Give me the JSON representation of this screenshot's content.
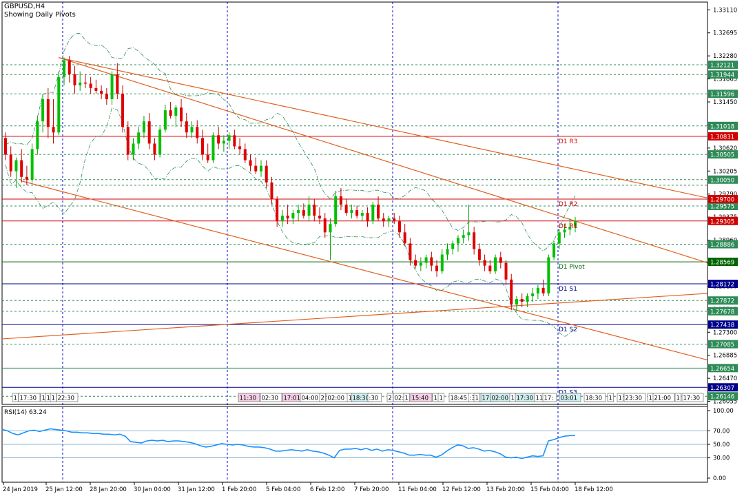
{
  "header": {
    "symbol_line": "GBPUSD,H4",
    "subtitle": "Showing Daily Pivots"
  },
  "chart_data": {
    "type": "candlestick",
    "symbol": "GBPUSD",
    "timeframe": "H4",
    "price_range": [
      1.26,
      1.3325
    ],
    "price_ticks": [
      "1.33110",
      "1.32695",
      "1.32280",
      "1.31865",
      "1.31450",
      "1.31035",
      "1.30620",
      "1.30205",
      "1.29790",
      "1.29375",
      "1.28960",
      "1.28545",
      "1.28130",
      "1.27715",
      "1.27300",
      "1.26885",
      "1.26470",
      "1.26055"
    ],
    "time_labels": [
      "24 Jan 2019",
      "25 Jan 12:00",
      "28 Jan 20:00",
      "30 Jan 04:00",
      "31 Jan 12:00",
      "1 Feb 20:00",
      "5 Feb 04:00",
      "6 Feb 12:00",
      "7 Feb 20:00",
      "11 Feb 04:00",
      "12 Feb 12:00",
      "13 Feb 20:00",
      "15 Feb 04:00",
      "18 Feb 12:00"
    ],
    "colors": {
      "bull": "#00c000",
      "bear": "#e00000",
      "wick_bull": "#00a000",
      "wick_bear": "#c00000",
      "trend": "#e06020",
      "pivot_red": "#d00000",
      "pivot_green": "#006400",
      "pivot_blue": "#00008b",
      "rsi": "#1e90ff",
      "grid": "#2e8b57",
      "vline": "#0000cd"
    },
    "pivots": [
      {
        "label": "D1 R3",
        "price": 1.30831,
        "color": "red"
      },
      {
        "label": "D1 R2",
        "price": 1.297,
        "color": "red"
      },
      {
        "label": "D1 R1",
        "price": 1.29305,
        "color": "red"
      },
      {
        "label": "D1 Pivot",
        "price": 1.28569,
        "color": "green"
      },
      {
        "label": "D1 S1",
        "price": 1.28172,
        "color": "blue"
      },
      {
        "label": "D1 S2",
        "price": 1.27438,
        "color": "blue"
      },
      {
        "label": "D1 S3",
        "price": 1.26307,
        "color": "blue"
      }
    ],
    "right_pivot_boxes": [
      {
        "price": 1.30831,
        "text": "1.30831",
        "bg": "#d00000"
      },
      {
        "price": 1.297,
        "text": "1.29700",
        "bg": "#d00000"
      },
      {
        "price": 1.29305,
        "text": "1.29305",
        "bg": "#d00000"
      },
      {
        "price": 1.28569,
        "text": "1.28569",
        "bg": "#006400"
      },
      {
        "price": 1.28172,
        "text": "1.28172",
        "bg": "#00008b"
      },
      {
        "price": 1.27438,
        "text": "1.27438",
        "bg": "#00008b"
      },
      {
        "price": 1.26307,
        "text": "1.26307",
        "bg": "#00008b"
      }
    ],
    "right_level_boxes": [
      {
        "price": 1.32121,
        "text": "1.32121"
      },
      {
        "price": 1.31944,
        "text": "1.31944"
      },
      {
        "price": 1.31596,
        "text": "1.31596"
      },
      {
        "price": 1.31018,
        "text": "1.31018"
      },
      {
        "price": 1.30505,
        "text": "1.30505"
      },
      {
        "price": 1.3005,
        "text": "1.30050"
      },
      {
        "price": 1.29575,
        "text": "1.29575"
      },
      {
        "price": 1.28886,
        "text": "1.28886"
      },
      {
        "price": 1.27872,
        "text": "1.27872"
      },
      {
        "price": 1.27678,
        "text": "1.27678"
      },
      {
        "price": 1.27085,
        "text": "1.27085"
      },
      {
        "price": 1.26654,
        "text": "1.26654"
      },
      {
        "price": 1.26146,
        "text": "1.26146"
      }
    ],
    "dashed_levels": [
      1.32121,
      1.31944,
      1.31596,
      1.31018,
      1.30505,
      1.3005,
      1.2995,
      1.29575,
      1.28886,
      1.27872,
      1.27678,
      1.27085,
      1.26146
    ],
    "solid_levels": [
      1.26654
    ],
    "candles": [
      {
        "o": 1.308,
        "h": 1.309,
        "l": 1.304,
        "c": 1.305
      },
      {
        "o": 1.305,
        "h": 1.3065,
        "l": 1.301,
        "c": 1.302
      },
      {
        "o": 1.302,
        "h": 1.3045,
        "l": 1.299,
        "c": 1.304
      },
      {
        "o": 1.304,
        "h": 1.306,
        "l": 1.3,
        "c": 1.301
      },
      {
        "o": 1.301,
        "h": 1.303,
        "l": 1.2995,
        "c": 1.3005
      },
      {
        "o": 1.3005,
        "h": 1.307,
        "l": 1.3,
        "c": 1.306
      },
      {
        "o": 1.306,
        "h": 1.312,
        "l": 1.305,
        "c": 1.311
      },
      {
        "o": 1.311,
        "h": 1.316,
        "l": 1.309,
        "c": 1.315
      },
      {
        "o": 1.315,
        "h": 1.317,
        "l": 1.308,
        "c": 1.31
      },
      {
        "o": 1.31,
        "h": 1.315,
        "l": 1.307,
        "c": 1.309
      },
      {
        "o": 1.309,
        "h": 1.32,
        "l": 1.3085,
        "c": 1.319
      },
      {
        "o": 1.319,
        "h": 1.3225,
        "l": 1.3175,
        "c": 1.322
      },
      {
        "o": 1.322,
        "h": 1.3228,
        "l": 1.318,
        "c": 1.3195
      },
      {
        "o": 1.3195,
        "h": 1.321,
        "l": 1.316,
        "c": 1.3175
      },
      {
        "o": 1.3175,
        "h": 1.32,
        "l": 1.3165,
        "c": 1.318
      },
      {
        "o": 1.318,
        "h": 1.3195,
        "l": 1.317,
        "c": 1.3178
      },
      {
        "o": 1.3178,
        "h": 1.319,
        "l": 1.316,
        "c": 1.317
      },
      {
        "o": 1.317,
        "h": 1.3185,
        "l": 1.316,
        "c": 1.3165
      },
      {
        "o": 1.3165,
        "h": 1.3175,
        "l": 1.315,
        "c": 1.316
      },
      {
        "o": 1.316,
        "h": 1.317,
        "l": 1.314,
        "c": 1.315
      },
      {
        "o": 1.315,
        "h": 1.32,
        "l": 1.314,
        "c": 1.3195
      },
      {
        "o": 1.3195,
        "h": 1.3215,
        "l": 1.315,
        "c": 1.316
      },
      {
        "o": 1.316,
        "h": 1.3175,
        "l": 1.309,
        "c": 1.31
      },
      {
        "o": 1.31,
        "h": 1.311,
        "l": 1.304,
        "c": 1.305
      },
      {
        "o": 1.305,
        "h": 1.308,
        "l": 1.304,
        "c": 1.307
      },
      {
        "o": 1.307,
        "h": 1.31,
        "l": 1.306,
        "c": 1.309
      },
      {
        "o": 1.309,
        "h": 1.312,
        "l": 1.308,
        "c": 1.311
      },
      {
        "o": 1.311,
        "h": 1.3125,
        "l": 1.306,
        "c": 1.307
      },
      {
        "o": 1.307,
        "h": 1.308,
        "l": 1.304,
        "c": 1.305
      },
      {
        "o": 1.305,
        "h": 1.31,
        "l": 1.3045,
        "c": 1.3095
      },
      {
        "o": 1.3095,
        "h": 1.314,
        "l": 1.309,
        "c": 1.313
      },
      {
        "o": 1.313,
        "h": 1.3145,
        "l": 1.3115,
        "c": 1.312
      },
      {
        "o": 1.312,
        "h": 1.314,
        "l": 1.31,
        "c": 1.3135
      },
      {
        "o": 1.3135,
        "h": 1.315,
        "l": 1.31,
        "c": 1.311
      },
      {
        "o": 1.311,
        "h": 1.3125,
        "l": 1.308,
        "c": 1.309
      },
      {
        "o": 1.309,
        "h": 1.311,
        "l": 1.308,
        "c": 1.31
      },
      {
        "o": 1.31,
        "h": 1.3112,
        "l": 1.307,
        "c": 1.308
      },
      {
        "o": 1.308,
        "h": 1.3095,
        "l": 1.304,
        "c": 1.305
      },
      {
        "o": 1.305,
        "h": 1.307,
        "l": 1.3035,
        "c": 1.304
      },
      {
        "o": 1.304,
        "h": 1.309,
        "l": 1.3035,
        "c": 1.3085
      },
      {
        "o": 1.3085,
        "h": 1.31,
        "l": 1.306,
        "c": 1.307
      },
      {
        "o": 1.307,
        "h": 1.3085,
        "l": 1.3055,
        "c": 1.3075
      },
      {
        "o": 1.3075,
        "h": 1.309,
        "l": 1.306,
        "c": 1.3085
      },
      {
        "o": 1.3085,
        "h": 1.3095,
        "l": 1.306,
        "c": 1.3065
      },
      {
        "o": 1.3065,
        "h": 1.308,
        "l": 1.305,
        "c": 1.306
      },
      {
        "o": 1.306,
        "h": 1.307,
        "l": 1.3035,
        "c": 1.304
      },
      {
        "o": 1.304,
        "h": 1.305,
        "l": 1.302,
        "c": 1.303
      },
      {
        "o": 1.303,
        "h": 1.3045,
        "l": 1.3015,
        "c": 1.302
      },
      {
        "o": 1.302,
        "h": 1.304,
        "l": 1.301,
        "c": 1.303
      },
      {
        "o": 1.303,
        "h": 1.304,
        "l": 1.299,
        "c": 1.3
      },
      {
        "o": 1.3,
        "h": 1.301,
        "l": 1.296,
        "c": 1.297
      },
      {
        "o": 1.297,
        "h": 1.2975,
        "l": 1.292,
        "c": 1.293
      },
      {
        "o": 1.293,
        "h": 1.295,
        "l": 1.292,
        "c": 1.294
      },
      {
        "o": 1.294,
        "h": 1.296,
        "l": 1.2925,
        "c": 1.2935
      },
      {
        "o": 1.2935,
        "h": 1.295,
        "l": 1.2925,
        "c": 1.2945
      },
      {
        "o": 1.2945,
        "h": 1.296,
        "l": 1.293,
        "c": 1.295
      },
      {
        "o": 1.295,
        "h": 1.2962,
        "l": 1.2935,
        "c": 1.294
      },
      {
        "o": 1.294,
        "h": 1.2975,
        "l": 1.293,
        "c": 1.296
      },
      {
        "o": 1.296,
        "h": 1.297,
        "l": 1.293,
        "c": 1.294
      },
      {
        "o": 1.294,
        "h": 1.2955,
        "l": 1.2925,
        "c": 1.2935
      },
      {
        "o": 1.2935,
        "h": 1.2945,
        "l": 1.29,
        "c": 1.291
      },
      {
        "o": 1.291,
        "h": 1.2935,
        "l": 1.286,
        "c": 1.2925
      },
      {
        "o": 1.2925,
        "h": 1.2985,
        "l": 1.292,
        "c": 1.2975
      },
      {
        "o": 1.2975,
        "h": 1.299,
        "l": 1.295,
        "c": 1.296
      },
      {
        "o": 1.296,
        "h": 1.297,
        "l": 1.294,
        "c": 1.2945
      },
      {
        "o": 1.2945,
        "h": 1.296,
        "l": 1.2935,
        "c": 1.295
      },
      {
        "o": 1.295,
        "h": 1.2958,
        "l": 1.2935,
        "c": 1.294
      },
      {
        "o": 1.294,
        "h": 1.295,
        "l": 1.293,
        "c": 1.2945
      },
      {
        "o": 1.2945,
        "h": 1.2955,
        "l": 1.292,
        "c": 1.293
      },
      {
        "o": 1.293,
        "h": 1.2965,
        "l": 1.2925,
        "c": 1.296
      },
      {
        "o": 1.296,
        "h": 1.2975,
        "l": 1.293,
        "c": 1.2935
      },
      {
        "o": 1.2935,
        "h": 1.2945,
        "l": 1.292,
        "c": 1.293
      },
      {
        "o": 1.293,
        "h": 1.294,
        "l": 1.292,
        "c": 1.2935
      },
      {
        "o": 1.2935,
        "h": 1.2945,
        "l": 1.2925,
        "c": 1.293
      },
      {
        "o": 1.293,
        "h": 1.294,
        "l": 1.29,
        "c": 1.291
      },
      {
        "o": 1.291,
        "h": 1.2925,
        "l": 1.2885,
        "c": 1.289
      },
      {
        "o": 1.289,
        "h": 1.29,
        "l": 1.285,
        "c": 1.286
      },
      {
        "o": 1.286,
        "h": 1.287,
        "l": 1.2845,
        "c": 1.285
      },
      {
        "o": 1.285,
        "h": 1.2865,
        "l": 1.284,
        "c": 1.2855
      },
      {
        "o": 1.2855,
        "h": 1.287,
        "l": 1.2845,
        "c": 1.2865
      },
      {
        "o": 1.2865,
        "h": 1.2875,
        "l": 1.284,
        "c": 1.285
      },
      {
        "o": 1.285,
        "h": 1.286,
        "l": 1.283,
        "c": 1.284
      },
      {
        "o": 1.284,
        "h": 1.288,
        "l": 1.2835,
        "c": 1.287
      },
      {
        "o": 1.287,
        "h": 1.289,
        "l": 1.286,
        "c": 1.288
      },
      {
        "o": 1.288,
        "h": 1.2895,
        "l": 1.287,
        "c": 1.289
      },
      {
        "o": 1.289,
        "h": 1.2905,
        "l": 1.2875,
        "c": 1.29
      },
      {
        "o": 1.29,
        "h": 1.2915,
        "l": 1.289,
        "c": 1.2905
      },
      {
        "o": 1.2905,
        "h": 1.296,
        "l": 1.2895,
        "c": 1.291
      },
      {
        "o": 1.291,
        "h": 1.292,
        "l": 1.287,
        "c": 1.288
      },
      {
        "o": 1.288,
        "h": 1.289,
        "l": 1.285,
        "c": 1.286
      },
      {
        "o": 1.286,
        "h": 1.287,
        "l": 1.284,
        "c": 1.285
      },
      {
        "o": 1.285,
        "h": 1.286,
        "l": 1.2835,
        "c": 1.284
      },
      {
        "o": 1.284,
        "h": 1.287,
        "l": 1.2835,
        "c": 1.2865
      },
      {
        "o": 1.2865,
        "h": 1.2875,
        "l": 1.2845,
        "c": 1.2855
      },
      {
        "o": 1.2855,
        "h": 1.286,
        "l": 1.2815,
        "c": 1.2825
      },
      {
        "o": 1.2825,
        "h": 1.2835,
        "l": 1.277,
        "c": 1.278
      },
      {
        "o": 1.278,
        "h": 1.2795,
        "l": 1.2768,
        "c": 1.279
      },
      {
        "o": 1.279,
        "h": 1.28,
        "l": 1.2775,
        "c": 1.2785
      },
      {
        "o": 1.2785,
        "h": 1.28,
        "l": 1.2775,
        "c": 1.2795
      },
      {
        "o": 1.2795,
        "h": 1.281,
        "l": 1.2785,
        "c": 1.28
      },
      {
        "o": 1.28,
        "h": 1.2815,
        "l": 1.279,
        "c": 1.281
      },
      {
        "o": 1.281,
        "h": 1.2825,
        "l": 1.2795,
        "c": 1.28
      },
      {
        "o": 1.28,
        "h": 1.287,
        "l": 1.2795,
        "c": 1.2865
      },
      {
        "o": 1.2865,
        "h": 1.2895,
        "l": 1.286,
        "c": 1.289
      },
      {
        "o": 1.289,
        "h": 1.2915,
        "l": 1.288,
        "c": 1.291
      },
      {
        "o": 1.291,
        "h": 1.2925,
        "l": 1.29,
        "c": 1.2915
      },
      {
        "o": 1.2915,
        "h": 1.2935,
        "l": 1.2905,
        "c": 1.292
      },
      {
        "o": 1.292,
        "h": 1.2938,
        "l": 1.291,
        "c": 1.293
      }
    ],
    "time_tags": [
      {
        "t": "1",
        "c": "none"
      },
      {
        "t": "17:30",
        "c": "none"
      },
      {
        "t": "1",
        "c": "none"
      },
      {
        "t": "1",
        "c": "none"
      },
      {
        "t": "1",
        "c": "none"
      },
      {
        "t": "22:30",
        "c": "none"
      },
      {
        "t": "11:30",
        "c": "pink"
      },
      {
        "t": "02:30",
        "c": "none"
      },
      {
        "t": "17:01",
        "c": "pink"
      },
      {
        "t": "04:00",
        "c": "none"
      },
      {
        "t": "2",
        "c": "none"
      },
      {
        "t": "02:00",
        "c": "none"
      },
      {
        "t": "1",
        "c": "none"
      },
      {
        "t": "18:30",
        "c": "cyan"
      },
      {
        "t": ":30",
        "c": "none"
      },
      {
        "t": "2",
        "c": "none"
      },
      {
        "t": "02:",
        "c": "none"
      },
      {
        "t": "1",
        "c": "none"
      },
      {
        "t": "15:40",
        "c": "pink"
      },
      {
        "t": "1",
        "c": "none"
      },
      {
        "t": "1",
        "c": "none"
      },
      {
        "t": "18:45",
        "c": "none"
      },
      {
        "t": ":30",
        "c": "none"
      },
      {
        "t": "1",
        "c": "none"
      },
      {
        "t": "17:",
        "c": "cyan"
      },
      {
        "t": "02:00",
        "c": "cyan"
      },
      {
        "t": "1",
        "c": "none"
      },
      {
        "t": "17:30",
        "c": "cyan"
      },
      {
        "t": "11:",
        "c": "none"
      },
      {
        "t": "17:",
        "c": "none"
      },
      {
        "t": "03:01",
        "c": "cyan"
      },
      {
        "t": "18:30",
        "c": "none"
      },
      {
        "t": "1",
        "c": "none"
      },
      {
        "t": "1",
        "c": "none"
      },
      {
        "t": "23:30",
        "c": "none"
      },
      {
        "t": "1",
        "c": "none"
      },
      {
        "t": "21:00",
        "c": "none"
      },
      {
        "t": "1",
        "c": "none"
      },
      {
        "t": "17:30",
        "c": "none"
      }
    ],
    "rsi": {
      "label": "RSI(14) 63.24",
      "period": 14,
      "last": 63.24,
      "ylim": [
        0,
        100
      ],
      "ticks": [
        "100.00",
        "70.00",
        "50.00",
        "30.00",
        "0.00"
      ],
      "levels": [
        70,
        50,
        30
      ],
      "values": [
        72,
        70,
        66,
        64,
        67,
        70,
        71,
        69,
        71,
        73,
        72,
        71,
        70,
        68,
        68,
        67,
        67,
        66,
        66,
        65,
        65,
        64,
        65,
        62,
        54,
        53,
        52,
        55,
        56,
        55,
        56,
        54,
        55,
        55,
        54,
        53,
        51,
        48,
        46,
        47,
        49,
        51,
        50,
        49,
        50,
        49,
        47,
        46,
        46,
        45,
        43,
        40,
        40,
        41,
        42,
        41,
        40,
        42,
        40,
        39,
        37,
        34,
        30,
        41,
        43,
        43,
        44,
        42,
        44,
        41,
        43,
        40,
        42,
        41,
        39,
        37,
        34,
        34,
        35,
        34,
        34,
        31,
        34,
        40,
        45,
        49,
        48,
        44,
        45,
        43,
        40,
        41,
        39,
        36,
        31,
        30,
        31,
        29,
        31,
        33,
        32,
        33,
        55,
        57,
        60,
        62,
        63,
        63
      ]
    }
  }
}
